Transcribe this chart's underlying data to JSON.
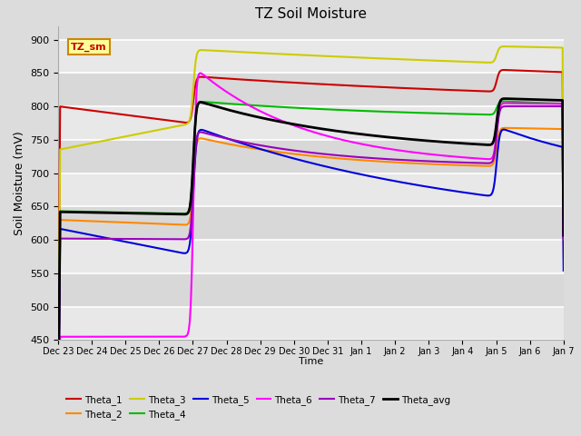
{
  "title": "TZ Soil Moisture",
  "ylabel": "Soil Moisture (mV)",
  "xlabel": "Time",
  "ylim": [
    450,
    920
  ],
  "yticks": [
    450,
    500,
    550,
    600,
    650,
    700,
    750,
    800,
    850,
    900
  ],
  "series_colors": {
    "Theta_1": "#cc0000",
    "Theta_2": "#ff8800",
    "Theta_3": "#cccc00",
    "Theta_4": "#00bb00",
    "Theta_5": "#0000dd",
    "Theta_6": "#ff00ff",
    "Theta_7": "#9900bb",
    "Theta_avg": "#000000"
  },
  "series_lw": {
    "Theta_1": 1.5,
    "Theta_2": 1.5,
    "Theta_3": 1.5,
    "Theta_4": 1.5,
    "Theta_5": 1.5,
    "Theta_6": 1.5,
    "Theta_7": 1.5,
    "Theta_avg": 2.0
  },
  "tz_sm_label": {
    "text": "TZ_sm",
    "bg": "#ffff99",
    "border": "#cc8800"
  },
  "date_labels": [
    "Dec 23",
    "Dec 24",
    "Dec 25",
    "Dec 26",
    "Dec 27",
    "Dec 28",
    "Dec 29",
    "Dec 30",
    "Dec 31",
    "Jan 1",
    "Jan 2",
    "Jan 3",
    "Jan 4",
    "Jan 5",
    "Jan 6",
    "Jan 7"
  ],
  "legend_order": [
    "Theta_1",
    "Theta_2",
    "Theta_3",
    "Theta_4",
    "Theta_5",
    "Theta_6",
    "Theta_7",
    "Theta_avg"
  ]
}
